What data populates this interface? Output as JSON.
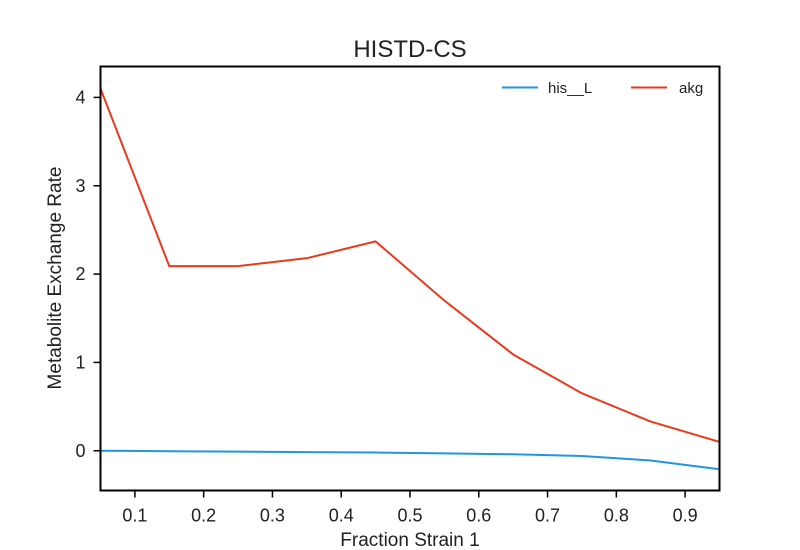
{
  "chart_data": {
    "type": "line",
    "title": "HISTD-CS",
    "xlabel": "Fraction Strain 1",
    "ylabel": "Metabolite Exchange Rate",
    "xlim": [
      0.05,
      0.95
    ],
    "ylim": [
      -0.45,
      4.35
    ],
    "xticks": [
      0.1,
      0.2,
      0.3,
      0.4,
      0.5,
      0.6,
      0.7,
      0.8,
      0.9
    ],
    "xtick_labels": [
      "0.1",
      "0.2",
      "0.3",
      "0.4",
      "0.5",
      "0.6",
      "0.7",
      "0.8",
      "0.9"
    ],
    "yticks": [
      0,
      1,
      2,
      3,
      4
    ],
    "ytick_labels": [
      "0",
      "1",
      "2",
      "3",
      "4"
    ],
    "grid": false,
    "legend_position": "top-right",
    "x": [
      0.05,
      0.15,
      0.25,
      0.35,
      0.45,
      0.55,
      0.65,
      0.75,
      0.85,
      0.95
    ],
    "series": [
      {
        "name": "his__L",
        "color": "#1f96e3",
        "values": [
          0.0,
          -0.005,
          -0.01,
          -0.015,
          -0.02,
          -0.03,
          -0.04,
          -0.06,
          -0.11,
          -0.21
        ]
      },
      {
        "name": "akg",
        "color": "#ea3a1c",
        "values": [
          4.1,
          2.09,
          2.09,
          2.18,
          2.37,
          1.7,
          1.09,
          0.65,
          0.33,
          0.1
        ]
      }
    ]
  }
}
